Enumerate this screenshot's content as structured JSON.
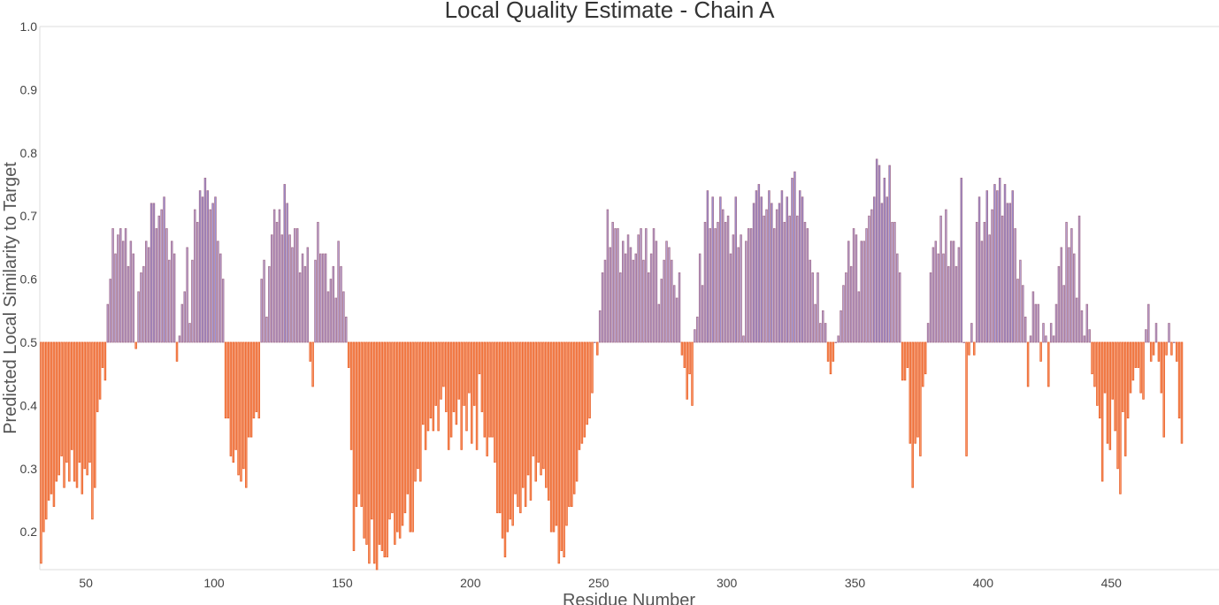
{
  "chart_data": {
    "type": "bar",
    "title": "Local Quality Estimate - Chain A",
    "xlabel": "Residue Number",
    "ylabel": "Predicted Local Similarity to Target",
    "xlim": [
      32,
      492
    ],
    "ylim": [
      0.14,
      1.0
    ],
    "baseline": 0.5,
    "xticks": [
      50,
      100,
      150,
      200,
      250,
      300,
      350,
      400,
      450
    ],
    "yticks": [
      0.2,
      0.3,
      0.4,
      0.5,
      0.6,
      0.7,
      0.8,
      0.9,
      1.0
    ],
    "colors": {
      "low_fill": "#fc9b6a",
      "low_stroke": "#e8602a",
      "high_fill": "#b9a6d6",
      "high_stroke": "#a3708f",
      "top_fill": "#9c95de",
      "axis_line": "#dddddd",
      "text": "#444444"
    },
    "series": [
      {
        "start_residue": 32,
        "values": [
          0.15,
          0.2,
          0.22,
          0.25,
          0.26,
          0.24,
          0.28,
          0.29,
          0.32,
          0.27,
          0.31,
          0.28,
          0.33,
          0.28,
          0.27,
          0.31,
          0.26,
          0.3,
          0.29,
          0.31,
          0.22,
          0.27,
          0.39,
          0.41,
          0.46,
          0.44,
          0.56,
          0.6,
          0.68,
          0.64,
          0.67,
          0.68,
          0.66,
          0.68,
          0.62,
          0.66,
          0.64,
          0.49,
          0.58,
          0.61,
          0.62,
          0.66,
          0.65,
          0.72,
          0.72,
          0.68,
          0.7,
          0.71,
          0.73,
          0.68,
          0.63,
          0.66,
          0.64,
          0.47,
          0.51,
          0.56,
          0.58,
          0.65,
          0.53,
          0.63,
          0.71,
          0.69,
          0.74,
          0.73,
          0.76,
          0.74,
          0.71,
          0.72,
          0.73,
          0.66,
          0.64,
          0.6,
          0.38,
          0.38,
          0.32,
          0.31,
          0.33,
          0.29,
          0.28,
          0.3,
          0.27,
          0.35,
          0.35,
          0.38,
          0.39,
          0.38,
          0.6,
          0.63,
          0.54,
          0.62,
          0.67,
          0.71,
          0.69,
          0.71,
          0.67,
          0.75,
          0.72,
          0.67,
          0.65,
          0.68,
          0.68,
          0.61,
          0.64,
          0.62,
          0.65,
          0.47,
          0.43,
          0.63,
          0.69,
          0.64,
          0.64,
          0.64,
          0.58,
          0.6,
          0.62,
          0.57,
          0.66,
          0.62,
          0.58,
          0.54,
          0.46,
          0.33,
          0.17,
          0.24,
          0.26,
          0.24,
          0.19,
          0.18,
          0.15,
          0.22,
          0.15,
          0.14,
          0.18,
          0.17,
          0.16,
          0.16,
          0.22,
          0.23,
          0.18,
          0.2,
          0.19,
          0.21,
          0.23,
          0.26,
          0.2,
          0.2,
          0.28,
          0.3,
          0.28,
          0.37,
          0.33,
          0.36,
          0.38,
          0.36,
          0.4,
          0.36,
          0.41,
          0.43,
          0.39,
          0.33,
          0.35,
          0.39,
          0.37,
          0.41,
          0.33,
          0.4,
          0.36,
          0.42,
          0.34,
          0.4,
          0.33,
          0.45,
          0.39,
          0.35,
          0.32,
          0.35,
          0.35,
          0.31,
          0.23,
          0.23,
          0.19,
          0.16,
          0.2,
          0.22,
          0.21,
          0.26,
          0.24,
          0.23,
          0.27,
          0.24,
          0.29,
          0.25,
          0.32,
          0.28,
          0.31,
          0.29,
          0.3,
          0.27,
          0.25,
          0.2,
          0.2,
          0.21,
          0.15,
          0.17,
          0.16,
          0.21,
          0.24,
          0.24,
          0.26,
          0.28,
          0.33,
          0.34,
          0.35,
          0.37,
          0.38,
          0.42,
          0.5,
          0.48,
          0.55,
          0.61,
          0.63,
          0.71,
          0.65,
          0.69,
          0.68,
          0.68,
          0.61,
          0.66,
          0.64,
          0.67,
          0.65,
          0.63,
          0.64,
          0.67,
          0.68,
          0.63,
          0.68,
          0.61,
          0.64,
          0.68,
          0.66,
          0.56,
          0.6,
          0.63,
          0.66,
          0.65,
          0.63,
          0.59,
          0.57,
          0.61,
          0.48,
          0.46,
          0.41,
          0.45,
          0.4,
          0.52,
          0.54,
          0.64,
          0.59,
          0.69,
          0.74,
          0.68,
          0.73,
          0.68,
          0.69,
          0.73,
          0.71,
          0.69,
          0.7,
          0.64,
          0.67,
          0.73,
          0.65,
          0.67,
          0.51,
          0.66,
          0.68,
          0.68,
          0.72,
          0.74,
          0.75,
          0.73,
          0.7,
          0.71,
          0.74,
          0.72,
          0.68,
          0.71,
          0.72,
          0.74,
          0.69,
          0.73,
          0.7,
          0.76,
          0.77,
          0.7,
          0.74,
          0.73,
          0.69,
          0.68,
          0.63,
          0.61,
          0.56,
          0.61,
          0.53,
          0.55,
          0.53,
          0.47,
          0.45,
          0.47,
          0.5,
          0.51,
          0.55,
          0.59,
          0.61,
          0.66,
          0.62,
          0.68,
          0.67,
          0.58,
          0.66,
          0.66,
          0.68,
          0.7,
          0.71,
          0.73,
          0.79,
          0.78,
          0.72,
          0.76,
          0.73,
          0.78,
          0.69,
          0.69,
          0.64,
          0.61,
          0.44,
          0.44,
          0.46,
          0.34,
          0.27,
          0.34,
          0.35,
          0.32,
          0.43,
          0.45,
          0.53,
          0.61,
          0.65,
          0.66,
          0.64,
          0.7,
          0.64,
          0.71,
          0.62,
          0.66,
          0.66,
          0.62,
          0.65,
          0.76,
          0.5,
          0.32,
          0.48,
          0.53,
          0.48,
          0.69,
          0.73,
          0.66,
          0.69,
          0.74,
          0.67,
          0.71,
          0.75,
          0.74,
          0.76,
          0.7,
          0.75,
          0.72,
          0.72,
          0.74,
          0.68,
          0.6,
          0.63,
          0.59,
          0.54,
          0.43,
          0.51,
          0.58,
          0.56,
          0.56,
          0.47,
          0.53,
          0.51,
          0.43,
          0.53,
          0.51,
          0.56,
          0.62,
          0.65,
          0.59,
          0.69,
          0.65,
          0.68,
          0.64,
          0.57,
          0.7,
          0.55,
          0.51,
          0.56,
          0.52,
          0.45,
          0.43,
          0.4,
          0.38,
          0.28,
          0.42,
          0.34,
          0.33,
          0.41,
          0.36,
          0.3,
          0.26,
          0.39,
          0.32,
          0.38,
          0.42,
          0.44,
          0.46,
          0.46,
          0.42,
          0.41,
          0.52,
          0.56,
          0.47,
          0.48,
          0.53,
          0.47,
          0.42,
          0.35,
          0.48,
          0.53,
          0.48,
          0.5,
          0.47,
          0.38,
          0.34
        ]
      }
    ]
  }
}
